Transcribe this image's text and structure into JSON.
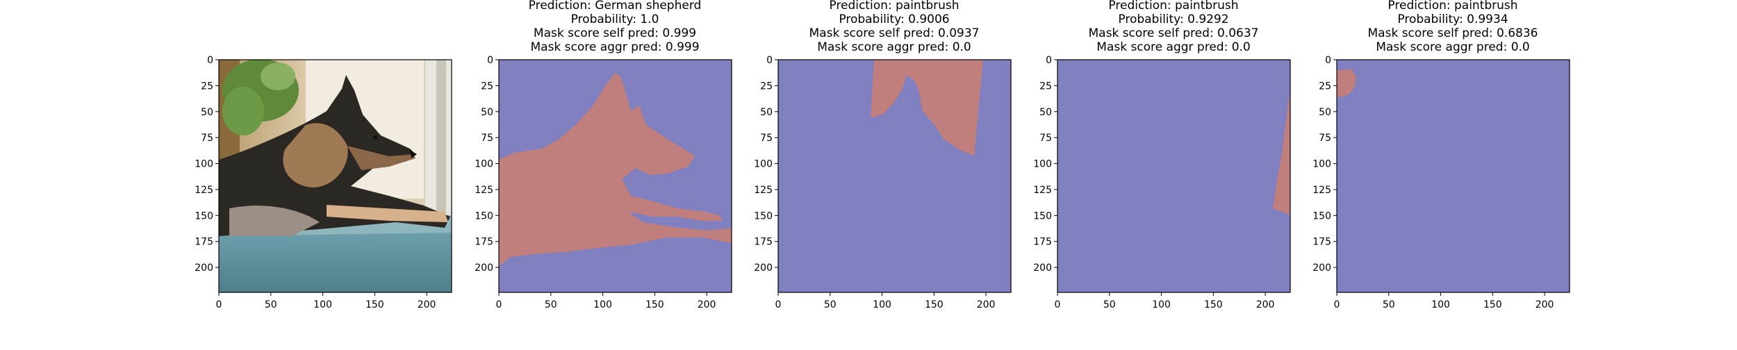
{
  "chart_data": [
    {
      "type": "image",
      "title_lines": [],
      "image": "photo of a German shepherd dog lying on a blue blanket by a window",
      "x_ticks": [
        "0",
        "50",
        "100",
        "150",
        "200"
      ],
      "y_ticks": [
        "0",
        "25",
        "50",
        "75",
        "100",
        "125",
        "150",
        "175",
        "200"
      ],
      "xlim": [
        0,
        224
      ],
      "ylim": [
        224,
        0
      ]
    },
    {
      "type": "heatmap",
      "title_lines": [
        "Prediction: German shepherd",
        "Probability: 1.0",
        "Mask score self pred: 0.999",
        "Mask score aggr pred: 0.999"
      ],
      "prediction": "German shepherd",
      "probability": 1.0,
      "mask_score_self_pred": 0.999,
      "mask_score_aggr_pred": 0.999,
      "mask": "German shepherd silhouette",
      "x_ticks": [
        "0",
        "50",
        "100",
        "150",
        "200"
      ],
      "y_ticks": [
        "0",
        "25",
        "50",
        "75",
        "100",
        "125",
        "150",
        "175",
        "200"
      ],
      "xlim": [
        0,
        224
      ],
      "ylim": [
        224,
        0
      ]
    },
    {
      "type": "heatmap",
      "title_lines": [
        "Prediction: paintbrush",
        "Probability: 0.9006",
        "Mask score self pred: 0.0937",
        "Mask score aggr pred: 0.0"
      ],
      "prediction": "paintbrush",
      "probability": 0.9006,
      "mask_score_self_pred": 0.0937,
      "mask_score_aggr_pred": 0.0,
      "mask": "top-center region",
      "x_ticks": [
        "0",
        "50",
        "100",
        "150",
        "200"
      ],
      "y_ticks": [
        "0",
        "25",
        "50",
        "75",
        "100",
        "125",
        "150",
        "175",
        "200"
      ],
      "xlim": [
        0,
        224
      ],
      "ylim": [
        224,
        0
      ]
    },
    {
      "type": "heatmap",
      "title_lines": [
        "Prediction: paintbrush",
        "Probability: 0.9292",
        "Mask score self pred: 0.0637",
        "Mask score aggr pred: 0.0"
      ],
      "prediction": "paintbrush",
      "probability": 0.9292,
      "mask_score_self_pred": 0.0637,
      "mask_score_aggr_pred": 0.0,
      "mask": "right edge sliver",
      "x_ticks": [
        "0",
        "50",
        "100",
        "150",
        "200"
      ],
      "y_ticks": [
        "0",
        "25",
        "50",
        "75",
        "100",
        "125",
        "150",
        "175",
        "200"
      ],
      "xlim": [
        0,
        224
      ],
      "ylim": [
        224,
        0
      ]
    },
    {
      "type": "heatmap",
      "title_lines": [
        "Prediction: paintbrush",
        "Probability: 0.9934",
        "Mask score self pred: 0.6836",
        "Mask score aggr pred: 0.0"
      ],
      "prediction": "paintbrush",
      "probability": 0.9934,
      "mask_score_self_pred": 0.6836,
      "mask_score_aggr_pred": 0.0,
      "mask": "small top-left blob",
      "x_ticks": [
        "0",
        "50",
        "100",
        "150",
        "200"
      ],
      "y_ticks": [
        "0",
        "25",
        "50",
        "75",
        "100",
        "125",
        "150",
        "175",
        "200"
      ],
      "xlim": [
        0,
        224
      ],
      "ylim": [
        224,
        0
      ]
    }
  ],
  "colors": {
    "mask_background": "#8080c0",
    "mask_foreground": "#c07f7c",
    "axis": "#000000"
  }
}
